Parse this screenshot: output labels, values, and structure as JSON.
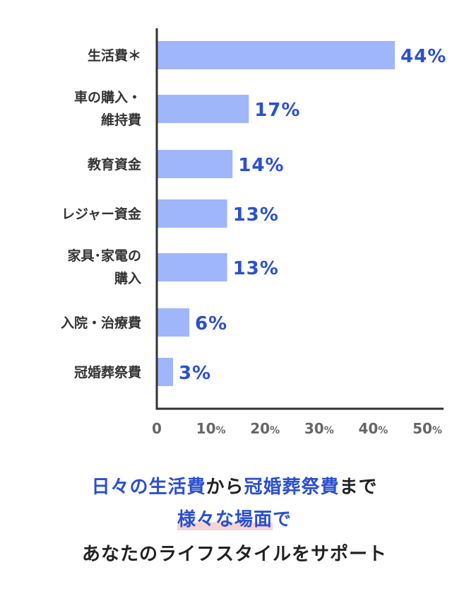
{
  "chart_data": {
    "type": "bar",
    "orientation": "horizontal",
    "categories": [
      [
        "生活費＊"
      ],
      [
        "車の購入・",
        "維持費"
      ],
      [
        "教育資金"
      ],
      [
        "レジャー資金"
      ],
      [
        "家具･家電の",
        "購入"
      ],
      [
        "入院・治療費"
      ],
      [
        "冠婚葬祭費"
      ]
    ],
    "values": [
      44,
      17,
      14,
      13,
      13,
      6,
      3
    ],
    "value_labels": [
      "44%",
      "17%",
      "14%",
      "13%",
      "13%",
      "6%",
      "3%"
    ],
    "xlim": [
      0,
      50
    ],
    "x_ticks": [
      {
        "num": "0",
        "unit": ""
      },
      {
        "num": "10",
        "unit": "%"
      },
      {
        "num": "20",
        "unit": "%"
      },
      {
        "num": "30",
        "unit": "%"
      },
      {
        "num": "40",
        "unit": "%"
      },
      {
        "num": "50",
        "unit": "%"
      }
    ],
    "x_tick_values": [
      0,
      10,
      20,
      30,
      40,
      50
    ],
    "grid": false,
    "bar_color": "#a0b6fb",
    "label_color": "#2b4fd0",
    "axis_color": "#333333"
  },
  "caption": {
    "line1": {
      "part1": "日々の生活費",
      "part2": "から",
      "part3": "冠婚葬祭費",
      "part4": "まで"
    },
    "line2": {
      "highlight": "様々な場面",
      "rest": "で"
    },
    "line3": "あなたのライフスタイルをサポート"
  },
  "colors": {
    "accent_blue": "#2b4fd0",
    "highlight_pink": "#f6d4d4",
    "text_dark": "#222222"
  }
}
